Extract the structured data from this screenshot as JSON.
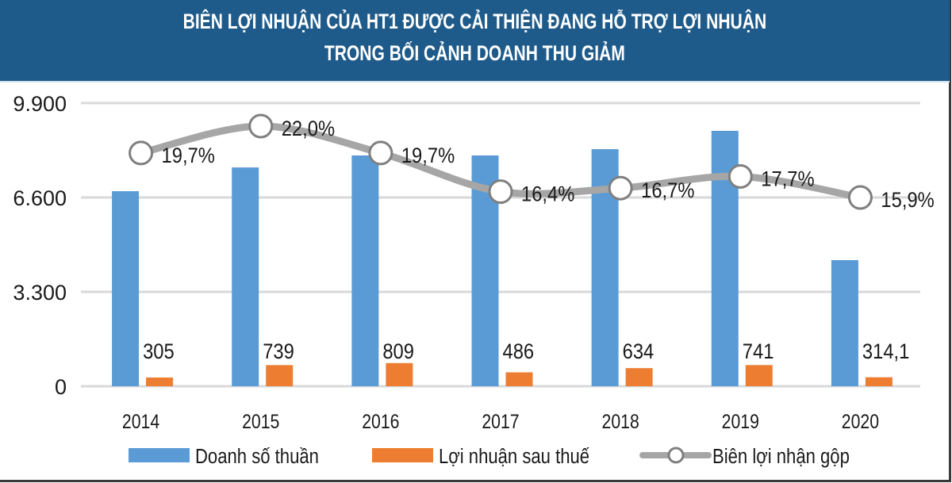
{
  "header": {
    "title_line1": "BIÊN LỢI NHUẬN CỦA HT1 ĐƯỢC CẢI THIỆN ĐANG HỖ TRỢ LỢI NHUẬN",
    "title_line2": "TRONG BỐI CẢNH DOANH THU GIẢM",
    "background_color": "#1f5b8a"
  },
  "chart_data": {
    "type": "bar",
    "title": "BIÊN LỢI NHUẬN CỦA HT1 ĐƯỢC CẢI THIỆN ĐANG HỖ TRỢ LỢI NHUẬN TRONG BỐI CẢNH DOANH THU GIẢM",
    "xlabel": "",
    "ylabel": "",
    "categories": [
      "2014",
      "2015",
      "2016",
      "2017",
      "2018",
      "2019",
      "2020"
    ],
    "ylim": [
      0,
      9900
    ],
    "yticks": [
      0,
      3300,
      6600,
      9900
    ],
    "ytick_labels": [
      "0",
      "3.300",
      "6.600",
      "9.900"
    ],
    "grid": true,
    "legend_position": "bottom",
    "series": [
      {
        "name": "Doanh số thuần",
        "type": "bar",
        "color": "#5b9bd5",
        "values": [
          6820,
          7650,
          8070,
          8070,
          8290,
          8930,
          4410
        ],
        "labels": [
          "",
          "",
          "",
          "",
          "",
          "",
          ""
        ]
      },
      {
        "name": "Lợi nhuận sau thuế",
        "type": "bar",
        "color": "#ed7d31",
        "values": [
          305,
          739,
          809,
          486,
          634,
          741,
          314.1
        ],
        "labels": [
          "305",
          "739",
          "809",
          "486",
          "634",
          "741",
          "314,1"
        ]
      },
      {
        "name": "Biên lợi nhận gộp",
        "type": "line",
        "color": "#a6a6a6",
        "unit": "%",
        "secondary_axis": true,
        "values": [
          19.7,
          22.0,
          19.7,
          16.4,
          16.7,
          17.7,
          15.9
        ],
        "labels": [
          "19,7%",
          "22,0%",
          "19,7%",
          "16,4%",
          "16,7%",
          "17,7%",
          "15,9%"
        ]
      }
    ]
  }
}
